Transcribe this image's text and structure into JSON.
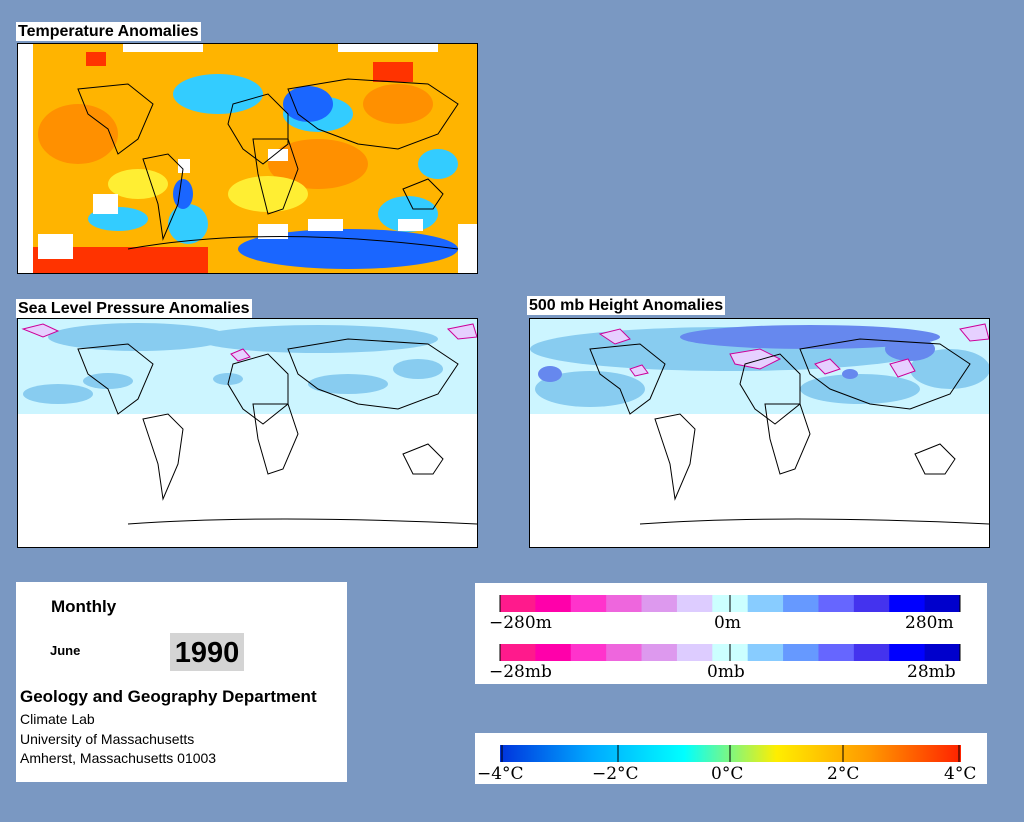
{
  "panels": {
    "temperature": {
      "title": "Temperature Anomalies"
    },
    "slp": {
      "title": "Sea Level Pressure Anomalies"
    },
    "height500": {
      "title": "500 mb Height Anomalies"
    }
  },
  "info": {
    "period": "Monthly",
    "month": "June",
    "year": "1990",
    "department": "Geology and Geography Department",
    "lines": [
      "Climate Lab",
      "University of Massachusetts",
      "Amherst, Massachusetts 01003"
    ]
  },
  "legends": {
    "height": {
      "min": "−280m",
      "mid": "0m",
      "max": "280m",
      "colors": [
        "#ff1a8c",
        "#ff00aa",
        "#ff33cc",
        "#ee66dd",
        "#dd99ee",
        "#ddccff",
        "#ccffff",
        "#88ccff",
        "#6699ff",
        "#6666ff",
        "#4433ee",
        "#0000ff",
        "#0000cc"
      ]
    },
    "pressure": {
      "min": "−28mb",
      "mid": "0mb",
      "max": "28mb",
      "colors": [
        "#ff1a8c",
        "#ff00aa",
        "#ff33cc",
        "#ee66dd",
        "#dd99ee",
        "#ddccff",
        "#ccffff",
        "#88ccff",
        "#6699ff",
        "#6666ff",
        "#4433ee",
        "#0000ff",
        "#0000cc"
      ]
    },
    "temperature": {
      "min": "−4°C",
      "neg": "−2°C",
      "mid": "0°C",
      "pos": "2°C",
      "max": "4°C",
      "stops": [
        "#0033dd",
        "#00aaff",
        "#00ffff",
        "#ffee00",
        "#ff9900",
        "#ff2200"
      ]
    }
  }
}
